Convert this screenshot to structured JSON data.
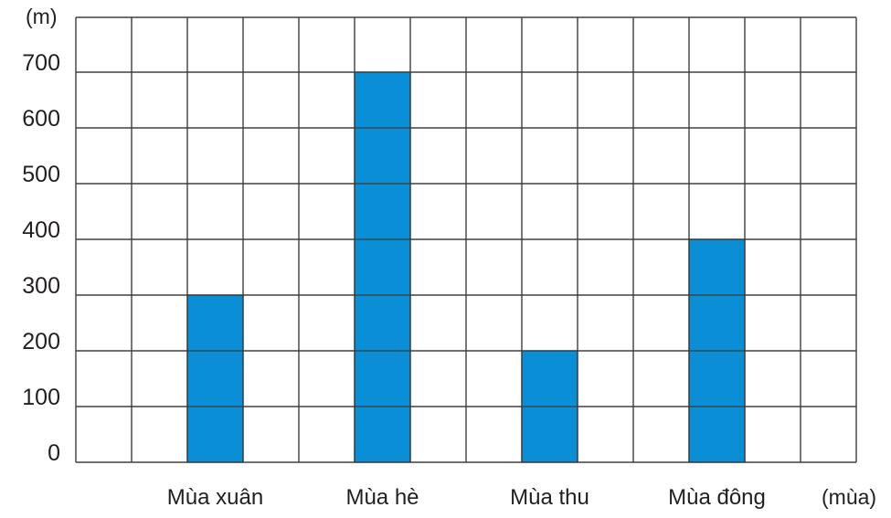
{
  "chart_data": {
    "type": "bar",
    "ylabel": "(m)",
    "xlabel": "(mùa)",
    "categories": [
      "Mùa xuân",
      "Mùa hè",
      "Mùa thu",
      "Mùa đông"
    ],
    "values": [
      300,
      700,
      200,
      400
    ],
    "ylim": [
      0,
      800
    ],
    "yticks": [
      0,
      100,
      200,
      300,
      400,
      500,
      600,
      700
    ],
    "grid": true,
    "bar_color": "#0a8fd6",
    "grid_color": "#3a3a3a"
  }
}
